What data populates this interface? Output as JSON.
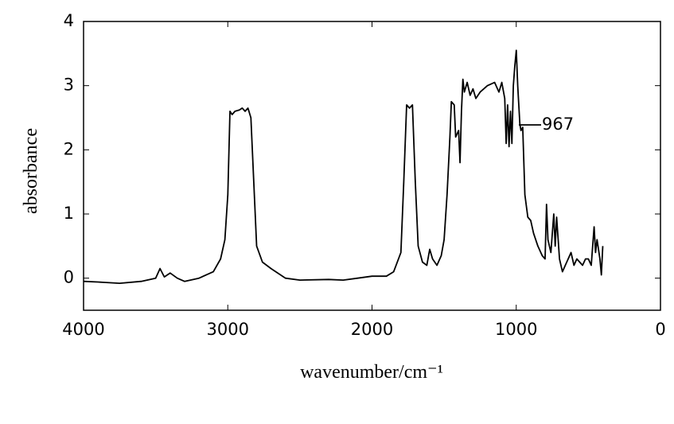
{
  "chart_data": {
    "type": "line",
    "x_label": "wavenumber/cm⁻¹",
    "y_label": "absorbance",
    "annotation": "967",
    "xlim": [
      4000,
      0
    ],
    "xticks": [
      4000,
      3000,
      2000,
      1000,
      0
    ],
    "ylim": [
      -0.5,
      4
    ],
    "yticks": [
      0,
      1,
      2,
      3,
      4
    ],
    "grid": false,
    "series": [
      {
        "color": "#000000",
        "x": [
          4000,
          3900,
          3750,
          3600,
          3500,
          3470,
          3440,
          3400,
          3350,
          3300,
          3200,
          3100,
          3050,
          3020,
          3000,
          2985,
          2970,
          2950,
          2920,
          2900,
          2880,
          2860,
          2840,
          2820,
          2800,
          2760,
          2700,
          2600,
          2500,
          2300,
          2200,
          2100,
          2000,
          1900,
          1850,
          1800,
          1780,
          1760,
          1740,
          1720,
          1700,
          1680,
          1650,
          1620,
          1600,
          1580,
          1550,
          1520,
          1500,
          1480,
          1460,
          1450,
          1430,
          1420,
          1400,
          1390,
          1380,
          1370,
          1360,
          1340,
          1320,
          1300,
          1280,
          1250,
          1200,
          1150,
          1120,
          1100,
          1080,
          1070,
          1060,
          1050,
          1040,
          1030,
          1020,
          1010,
          1000,
          990,
          975,
          967,
          955,
          940,
          920,
          900,
          880,
          850,
          820,
          800,
          790,
          780,
          760,
          740,
          730,
          720,
          700,
          680,
          660,
          640,
          620,
          600,
          580,
          560,
          540,
          520,
          500,
          480,
          460,
          450,
          440,
          430,
          420,
          410,
          400
        ],
        "values": [
          -0.05,
          -0.06,
          -0.08,
          -0.05,
          0,
          0.15,
          0.02,
          0.08,
          0,
          -0.05,
          0,
          0.1,
          0.3,
          0.6,
          1.3,
          2.6,
          2.55,
          2.6,
          2.62,
          2.65,
          2.6,
          2.65,
          2.5,
          1.5,
          0.5,
          0.25,
          0.15,
          0,
          -0.03,
          -0.02,
          -0.03,
          0,
          0.03,
          0.03,
          0.1,
          0.4,
          1.5,
          2.7,
          2.65,
          2.7,
          1.5,
          0.5,
          0.25,
          0.2,
          0.45,
          0.3,
          0.2,
          0.35,
          0.6,
          1.3,
          2.2,
          2.75,
          2.7,
          2.2,
          2.3,
          1.8,
          2.6,
          3.1,
          2.9,
          3.05,
          2.85,
          2.95,
          2.8,
          2.9,
          3.0,
          3.05,
          2.9,
          3.05,
          2.8,
          2.1,
          2.7,
          2.05,
          2.6,
          2.1,
          3.0,
          3.3,
          3.55,
          3.0,
          2.4,
          2.3,
          2.35,
          1.3,
          0.95,
          0.9,
          0.7,
          0.5,
          0.35,
          0.3,
          1.15,
          0.6,
          0.4,
          1.0,
          0.5,
          0.95,
          0.3,
          0.1,
          0.2,
          0.3,
          0.4,
          0.2,
          0.3,
          0.25,
          0.2,
          0.3,
          0.3,
          0.2,
          0.8,
          0.4,
          0.6,
          0.45,
          0.3,
          0.05,
          0.5
        ]
      }
    ]
  }
}
